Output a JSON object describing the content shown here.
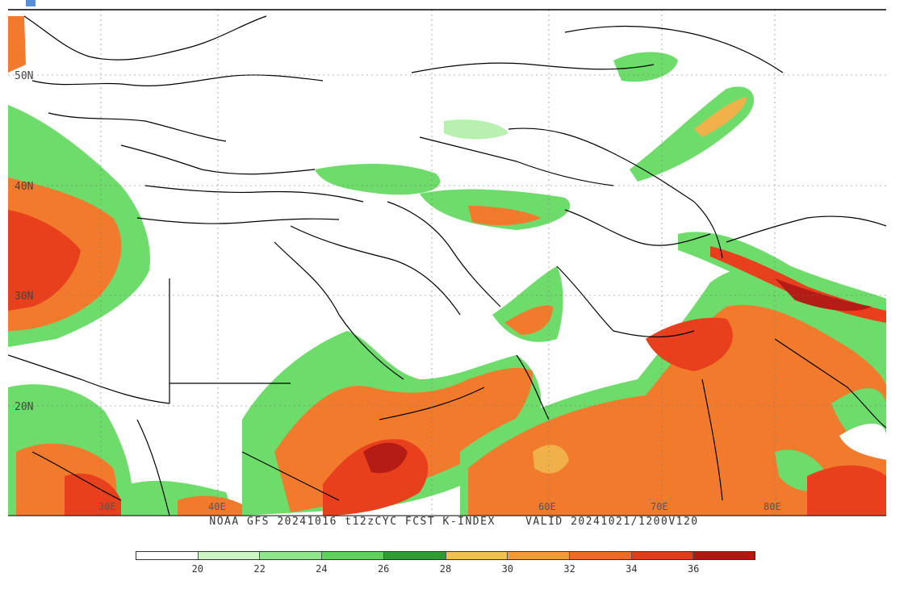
{
  "map": {
    "lat_labels": [
      "50N",
      "40N",
      "30N",
      "20N"
    ],
    "lon_labels": [
      "30E",
      "40E",
      "60E",
      "70E",
      "80E"
    ],
    "colors": {
      "green_light": "#b8f0b0",
      "green_mid": "#6ddc6a",
      "green_dark": "#2e9e3a",
      "yellow": "#f0b14a",
      "orange": "#f27a2c",
      "red": "#e8401c",
      "dark_red": "#b51c16"
    }
  },
  "caption": {
    "left": "NOAA GFS 20241016 t12zCYC FCST K-INDEX",
    "right": "VALID 20241021/1200V120"
  },
  "legend": {
    "swatch_colors": [
      "#ffffff",
      "#cdf5c4",
      "#8fe78b",
      "#5fd15d",
      "#2f9c34",
      "#f3c24c",
      "#f29a33",
      "#f06a25",
      "#e33c1b",
      "#b01810"
    ],
    "tick_labels": [
      "20",
      "22",
      "24",
      "26",
      "28",
      "30",
      "32",
      "34",
      "36"
    ]
  }
}
